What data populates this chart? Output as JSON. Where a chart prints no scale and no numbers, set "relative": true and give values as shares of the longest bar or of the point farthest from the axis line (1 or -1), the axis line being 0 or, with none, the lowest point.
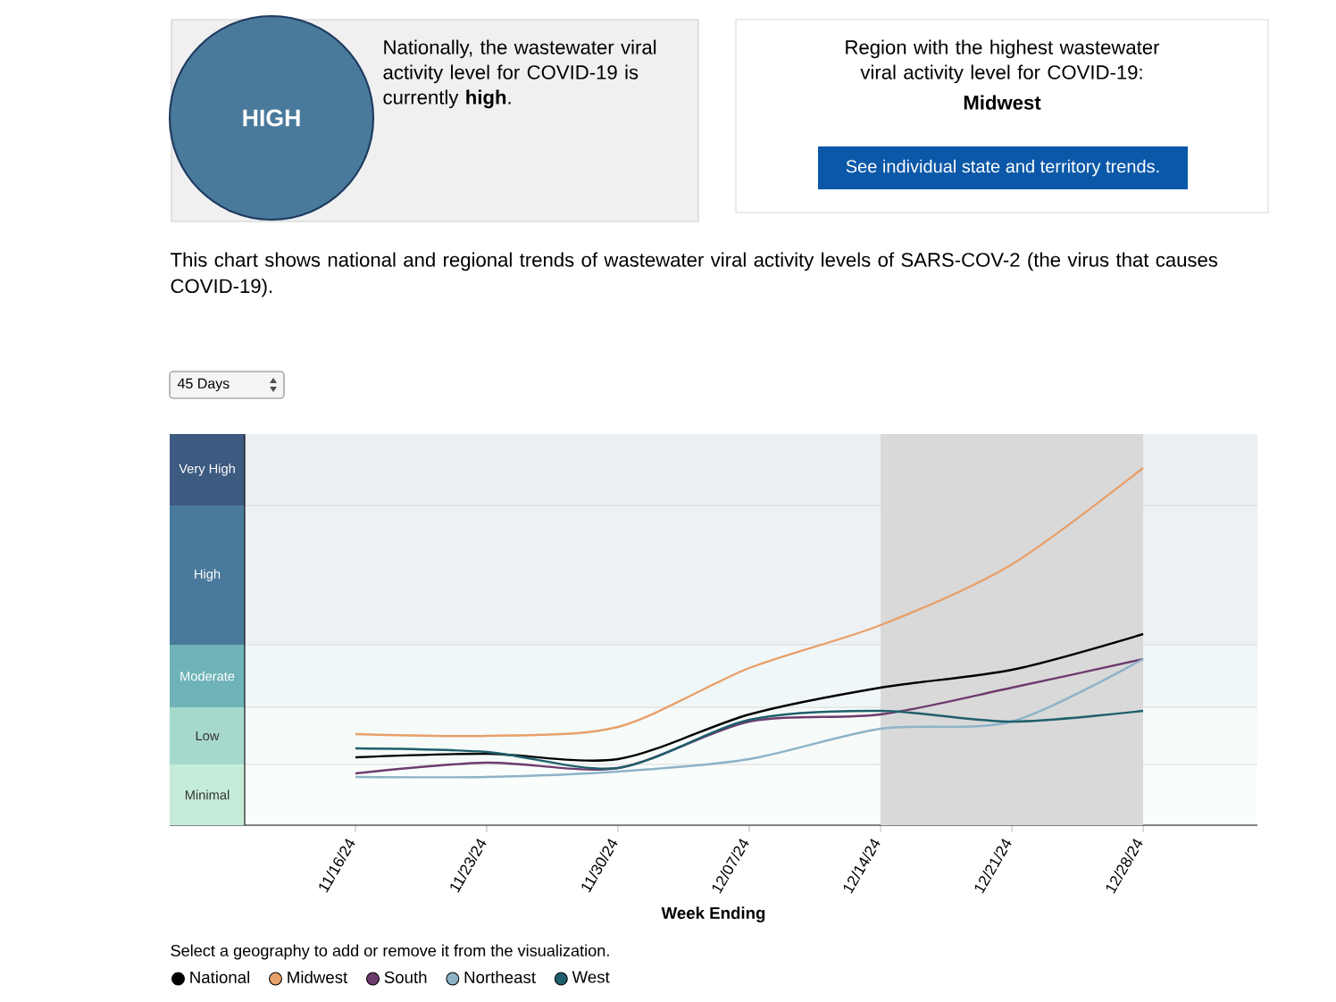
{
  "chart_data": {
    "type": "line",
    "subtitle": "This chart shows national and regional trends of wastewater viral activity levels of SARS-COV-2 (the virus that causes COVID-19).",
    "xlabel": "Week Ending",
    "categories": [
      "11/16/24",
      "11/23/24",
      "11/30/24",
      "12/07/24",
      "12/14/24",
      "12/21/24",
      "12/28/24"
    ],
    "relative": true,
    "legend": "bottom left",
    "series": [
      {
        "name": "National",
        "color": "#000000",
        "values": [
          0.19,
          0.2,
          0.185,
          0.31,
          0.385,
          0.435,
          0.535
        ]
      },
      {
        "name": "Midwest",
        "color": "#e8a06a",
        "values": [
          0.255,
          0.25,
          0.275,
          0.44,
          0.56,
          0.73,
          1
        ]
      },
      {
        "name": "South",
        "color": "#6e3b6e",
        "values": [
          0.145,
          0.175,
          0.16,
          0.29,
          0.31,
          0.385,
          0.465
        ]
      },
      {
        "name": "Northeast",
        "color": "#8db3c7",
        "values": [
          0.135,
          0.135,
          0.15,
          0.185,
          0.27,
          0.29,
          0.465
        ]
      },
      {
        "name": "West",
        "color": "#1f5f6b",
        "values": [
          0.215,
          0.205,
          0.16,
          0.295,
          0.32,
          0.29,
          0.32
        ]
      }
    ],
    "bands": [
      {
        "axis": "x",
        "from": "12/14/24",
        "to": "12/28/24",
        "color": "#d9d9d9"
      },
      {
        "axis": "y",
        "from": 0,
        "to": 0.17,
        "label": "Minimal",
        "color": "#c5ecd9"
      },
      {
        "axis": "y",
        "from": 0.17,
        "to": 0.33,
        "label": "Low",
        "color": "#a6d9cc"
      },
      {
        "axis": "y",
        "from": 0.33,
        "to": 0.505,
        "label": "Moderate",
        "color": "#6fb3b8"
      },
      {
        "axis": "y",
        "from": 0.505,
        "to": 0.895,
        "label": "High",
        "color": "#4a7a9b"
      },
      {
        "axis": "y",
        "from": 0.895,
        "to": 1.095,
        "label": "Very High",
        "color": "#3d5a80"
      }
    ],
    "annotations": [
      "HIGH",
      "Nationally, the wastewater viral activity level for COVID-19 is currently **high**.",
      "Region with the highest wastewater viral activity level for COVID-19:",
      "**Midwest**",
      "See individual state and territory trends.",
      "45 Days",
      "Select a geography to add or remove it from the visualization."
    ]
  }
}
